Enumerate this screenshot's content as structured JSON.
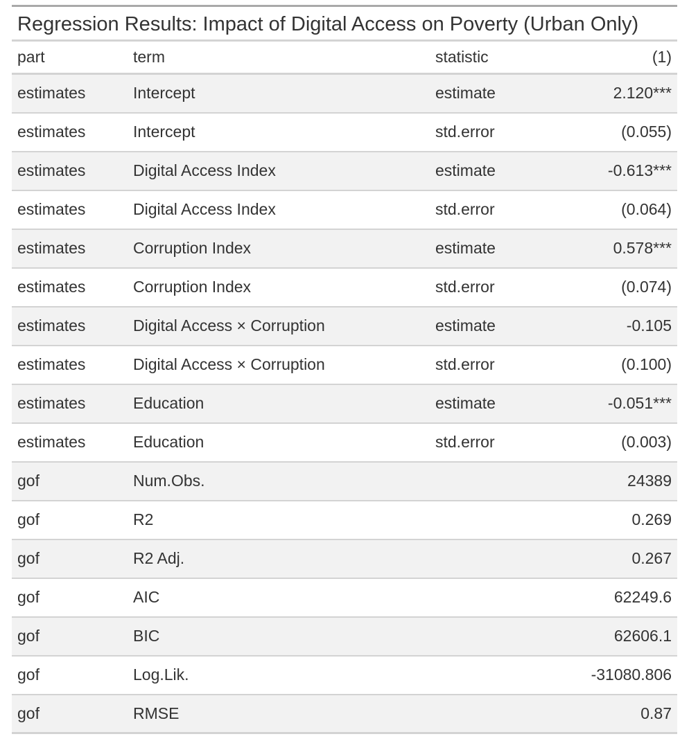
{
  "table": {
    "caption": "Regression Results: Impact of Digital Access on Poverty (Urban Only)",
    "columns": [
      "part",
      "term",
      "statistic",
      "(1)"
    ],
    "rows": [
      [
        "estimates",
        "Intercept",
        "estimate",
        "2.120***"
      ],
      [
        "estimates",
        "Intercept",
        "std.error",
        "(0.055)"
      ],
      [
        "estimates",
        "Digital Access Index",
        "estimate",
        "-0.613***"
      ],
      [
        "estimates",
        "Digital Access Index",
        "std.error",
        "(0.064)"
      ],
      [
        "estimates",
        "Corruption Index",
        "estimate",
        "0.578***"
      ],
      [
        "estimates",
        "Corruption Index",
        "std.error",
        "(0.074)"
      ],
      [
        "estimates",
        "Digital Access × Corruption",
        "estimate",
        "-0.105"
      ],
      [
        "estimates",
        "Digital Access × Corruption",
        "std.error",
        "(0.100)"
      ],
      [
        "estimates",
        "Education",
        "estimate",
        "-0.051***"
      ],
      [
        "estimates",
        "Education",
        "std.error",
        "(0.003)"
      ],
      [
        "gof",
        "Num.Obs.",
        "",
        "24389"
      ],
      [
        "gof",
        "R2",
        "",
        "0.269"
      ],
      [
        "gof",
        "R2 Adj.",
        "",
        "0.267"
      ],
      [
        "gof",
        "AIC",
        "",
        "62249.6"
      ],
      [
        "gof",
        "BIC",
        "",
        "62606.1"
      ],
      [
        "gof",
        "Log.Lik.",
        "",
        "-31080.806"
      ],
      [
        "gof",
        "RMSE",
        "",
        "0.87"
      ]
    ]
  }
}
